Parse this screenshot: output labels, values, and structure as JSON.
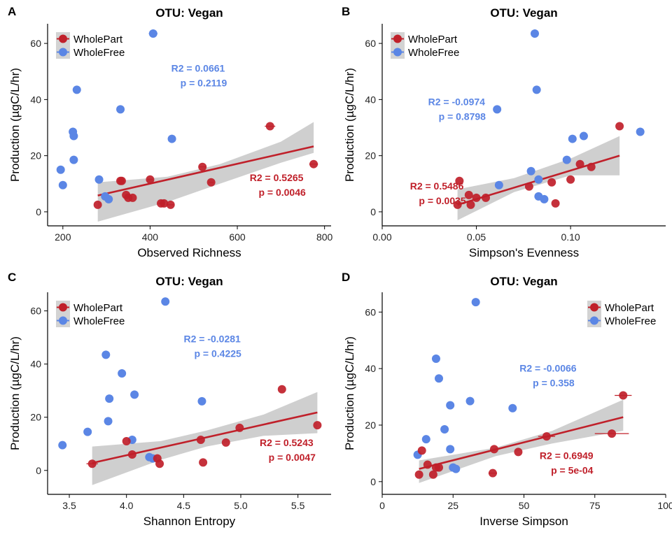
{
  "colors": {
    "wholepart": "#C0202A",
    "wholefree": "#5B86E5",
    "band": "#CCCCCC",
    "axis": "#000000"
  },
  "legend_labels": [
    "WholePart",
    "WholeFree"
  ],
  "chart_data": [
    {
      "panel": "A",
      "type": "scatter",
      "title": "OTU: Vegan",
      "xlabel": "Observed Richness",
      "ylabel": "Production (µgC/L/hr)",
      "xlim": [
        165,
        815
      ],
      "ylim": [
        -5,
        67
      ],
      "xticks": [
        200,
        400,
        600,
        800
      ],
      "yticks": [
        0,
        20,
        40,
        60
      ],
      "legend_position": "top-left",
      "series": [
        {
          "name": "WholePart",
          "x": [
            280,
            332,
            335,
            345,
            350,
            360,
            400,
            425,
            432,
            447,
            520,
            540,
            675,
            775
          ],
          "y": [
            2.5,
            11,
            11,
            6,
            5,
            5,
            11.5,
            3,
            3,
            2.5,
            16,
            10.5,
            30.5,
            17
          ],
          "xerr": [
            0,
            8,
            6,
            0,
            0,
            0,
            6,
            6,
            0,
            8,
            8,
            6,
            12,
            10
          ],
          "fit": [
            [
              280,
              5.8
            ],
            [
              775,
              23.3
            ]
          ],
          "band": [
            [
              [
                280,
                -3.5
              ],
              [
                440,
                3.5
              ],
              [
                560,
                10.0
              ],
              [
                700,
                17.5
              ],
              [
                775,
                21.0
              ]
            ],
            [
              [
                280,
                10.5
              ],
              [
                440,
                12.5
              ],
              [
                560,
                17.0
              ],
              [
                700,
                25.0
              ],
              [
                775,
                32.0
              ]
            ]
          ],
          "r2_label": "R2 = 0.5265",
          "p_label": "p = 0.0046",
          "label_pos": [
            690,
            7
          ]
        },
        {
          "name": "WholeFree",
          "x": [
            195,
            200,
            223,
            225,
            225,
            232,
            283,
            297,
            305,
            332,
            407,
            450
          ],
          "y": [
            15,
            9.5,
            28.5,
            27,
            18.5,
            43.5,
            11.5,
            5.5,
            4.5,
            36.5,
            63.5,
            26
          ],
          "xerr": [
            0,
            0,
            0,
            0,
            0,
            0,
            0,
            0,
            0,
            8,
            10,
            8
          ],
          "r2_label": "R2 = 0.0661",
          "p_label": "p = 0.2119",
          "label_pos": [
            510,
            46
          ]
        }
      ]
    },
    {
      "panel": "B",
      "type": "scatter",
      "title": "OTU: Vegan",
      "xlabel": "Simpson's Evenness",
      "ylabel": "Production (µgC/L/hr)",
      "xlim": [
        0,
        0.1505
      ],
      "ylim": [
        -5,
        67
      ],
      "xticks": [
        0.0,
        0.05,
        0.1
      ],
      "xtick_labels": [
        "0.00",
        "0.05",
        "0.10"
      ],
      "yticks": [
        0,
        20,
        40,
        60
      ],
      "legend_position": "top-left",
      "series": [
        {
          "name": "WholePart",
          "x": [
            0.04,
            0.041,
            0.046,
            0.047,
            0.05,
            0.055,
            0.078,
            0.09,
            0.092,
            0.1,
            0.105,
            0.111,
            0.126
          ],
          "y": [
            2.5,
            11,
            6,
            2.5,
            5,
            5,
            9,
            10.5,
            3,
            11.5,
            17,
            16,
            30.5
          ],
          "fit": [
            [
              0.04,
              2.5
            ],
            [
              0.126,
              20.0
            ]
          ],
          "band": [
            [
              [
                0.04,
                -3.0
              ],
              [
                0.07,
                7.0
              ],
              [
                0.1,
                13.0
              ],
              [
                0.126,
                13.0
              ]
            ],
            [
              [
                0.04,
                8.0
              ],
              [
                0.07,
                12.0
              ],
              [
                0.1,
                19.0
              ],
              [
                0.126,
                27.0
              ]
            ]
          ],
          "r2_label": "R2 = 0.5486",
          "p_label": "p = 0.0035",
          "label_pos": [
            0.029,
            4
          ]
        },
        {
          "name": "WholeFree",
          "x": [
            0.061,
            0.062,
            0.079,
            0.081,
            0.082,
            0.083,
            0.083,
            0.086,
            0.098,
            0.101,
            0.107,
            0.137
          ],
          "y": [
            36.5,
            9.5,
            14.5,
            63.5,
            43.5,
            11.5,
            5.5,
            4.5,
            18.5,
            26,
            27,
            28.5
          ],
          "r2_label": "R2 = -0.0974",
          "p_label": "p = 0.8798",
          "label_pos": [
            0.0395,
            34
          ]
        }
      ]
    },
    {
      "panel": "C",
      "type": "scatter",
      "title": "OTU: Vegan",
      "xlabel": "Shannon Entropy",
      "ylabel": "Production (µgC/L/hr)",
      "xlim": [
        3.31,
        5.79
      ],
      "ylim": [
        -9,
        67
      ],
      "xticks": [
        3.5,
        4.0,
        4.5,
        5.0,
        5.5
      ],
      "xtick_labels": [
        "3.5",
        "4.0",
        "4.5",
        "5.0",
        "5.5"
      ],
      "yticks": [
        0,
        20,
        40,
        60
      ],
      "legend_position": "top-left",
      "series": [
        {
          "name": "WholePart",
          "x": [
            3.7,
            4.0,
            4.05,
            4.27,
            4.29,
            4.65,
            4.67,
            4.87,
            4.99,
            5.36,
            5.67
          ],
          "y": [
            2.5,
            11,
            6,
            4.5,
            2.5,
            11.5,
            3,
            10.5,
            16,
            30.5,
            17
          ],
          "xerr": [
            0.05,
            0,
            0,
            0,
            0,
            0,
            0,
            0,
            0,
            0,
            0
          ],
          "fit": [
            [
              3.7,
              2.8
            ],
            [
              5.67,
              21.8
            ]
          ],
          "band": [
            [
              [
                3.7,
                -5.5
              ],
              [
                4.3,
                4.0
              ],
              [
                4.7,
                9.0
              ],
              [
                5.2,
                13.0
              ],
              [
                5.67,
                14.0
              ]
            ],
            [
              [
                3.7,
                9.0
              ],
              [
                4.3,
                11.0
              ],
              [
                4.7,
                15.0
              ],
              [
                5.2,
                21.0
              ],
              [
                5.67,
                29.5
              ]
            ]
          ],
          "r2_label": "R2 = 0.5243",
          "p_label": "p = 0.0047",
          "label_pos": [
            5.4,
            5
          ]
        },
        {
          "name": "WholeFree",
          "x": [
            3.44,
            3.66,
            3.82,
            3.84,
            3.85,
            3.96,
            4.05,
            4.07,
            4.2,
            4.23,
            4.34,
            4.66
          ],
          "y": [
            9.5,
            14.5,
            43.5,
            18.5,
            27,
            36.5,
            11.5,
            28.5,
            5,
            4.5,
            63.5,
            26
          ],
          "xerr": [
            0,
            0,
            0,
            0,
            0,
            0,
            0,
            0,
            0.03,
            0,
            0,
            0
          ],
          "r2_label": "R2 = -0.0281",
          "p_label": "p = 0.4225",
          "label_pos": [
            4.75,
            44
          ]
        }
      ]
    },
    {
      "panel": "D",
      "type": "scatter",
      "title": "OTU: Vegan",
      "xlabel": "Inverse Simpson",
      "ylabel": "Production (µgC/L/hr)",
      "xlim": [
        0,
        100
      ],
      "ylim": [
        -4.5,
        67
      ],
      "xticks": [
        0,
        25,
        50,
        75,
        100
      ],
      "yticks": [
        0,
        20,
        40,
        60
      ],
      "legend_position": "top-right",
      "series": [
        {
          "name": "WholePart",
          "x": [
            13,
            14,
            16,
            18,
            19,
            20,
            39,
            39.5,
            48,
            58,
            81,
            85
          ],
          "y": [
            2.5,
            11,
            6,
            2.5,
            5,
            5,
            3,
            11.5,
            10.5,
            16,
            17,
            30.5
          ],
          "xerr": [
            0,
            0,
            0,
            0,
            0,
            0,
            1.5,
            0,
            0,
            3,
            6,
            3
          ],
          "fit": [
            [
              13,
              4.5
            ],
            [
              85,
              22.8
            ]
          ],
          "band": [
            [
              [
                13,
                -0.5
              ],
              [
                40,
                9.0
              ],
              [
                60,
                13.5
              ],
              [
                85,
                18.0
              ]
            ],
            [
              [
                13,
                7.5
              ],
              [
                40,
                12.0
              ],
              [
                60,
                18.0
              ],
              [
                85,
                29.0
              ]
            ]
          ],
          "r2_label": "R2 = 0.6949",
          "p_label": "p = 5e-04",
          "label_pos": [
            65,
            4
          ]
        },
        {
          "name": "WholeFree",
          "x": [
            12.5,
            15.5,
            19,
            20,
            22,
            24,
            24,
            25,
            26,
            31,
            33,
            46
          ],
          "y": [
            9.5,
            15,
            43.5,
            36.5,
            18.5,
            27,
            11.5,
            5,
            4.5,
            28.5,
            63.5,
            26
          ],
          "r2_label": "R2 = -0.0066",
          "p_label": "p = 0.358",
          "label_pos": [
            58.5,
            35
          ]
        }
      ]
    }
  ]
}
